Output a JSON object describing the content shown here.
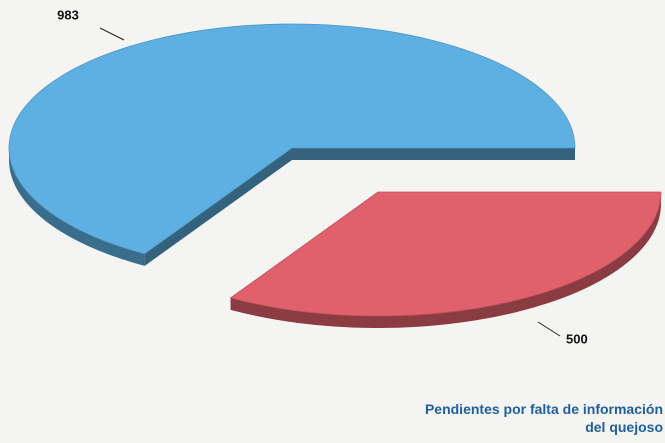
{
  "chart_data": {
    "type": "pie",
    "categories": [
      null,
      null
    ],
    "values": [
      983,
      500
    ],
    "colors": [
      "#5eb0e2",
      "#e0606c"
    ],
    "annotation": "Pendientes por falta de información del quejoso"
  }
}
